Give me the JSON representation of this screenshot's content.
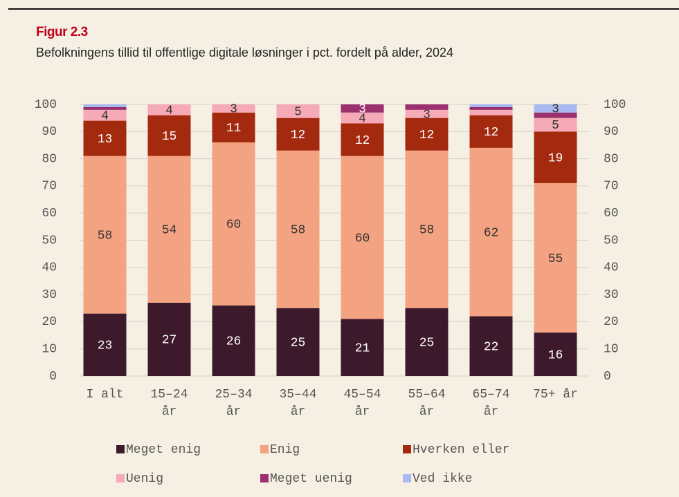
{
  "chart_data": {
    "type": "stacked_bar",
    "title": "Figur 2.3",
    "subtitle": "Befolkningens tillid til offentlige digitale løsninger i pct. fordelt på alder, 2024",
    "categories": [
      "I alt",
      "15–24 år",
      "25–34 år",
      "35–44 år",
      "45–54 år",
      "55–64 år",
      "65–74 år",
      "75+ år"
    ],
    "series": [
      {
        "name": "Meget enig",
        "color": "#3d1a2b",
        "values": [
          23,
          27,
          26,
          25,
          21,
          25,
          22,
          16
        ],
        "value_labels": [
          "23",
          "27",
          "26",
          "25",
          "21",
          "25",
          "22",
          "16"
        ]
      },
      {
        "name": "Enig",
        "color": "#f4a382",
        "values": [
          58,
          54,
          60,
          58,
          60,
          58,
          62,
          55
        ],
        "value_labels": [
          "58",
          "54",
          "60",
          "58",
          "60",
          "58",
          "62",
          "55"
        ]
      },
      {
        "name": "Hverken eller",
        "color": "#a3290f",
        "values": [
          13,
          15,
          11,
          12,
          12,
          12,
          12,
          19
        ],
        "value_labels": [
          "13",
          "15",
          "11",
          "12",
          "12",
          "12",
          "12",
          "19"
        ]
      },
      {
        "name": "Uenig",
        "color": "#f6a9b6",
        "values": [
          4,
          4,
          3,
          5,
          4,
          3,
          2,
          5
        ],
        "value_labels": [
          "4",
          "4",
          "3",
          "5",
          "4",
          "3",
          null,
          "5"
        ]
      },
      {
        "name": "Meget uenig",
        "color": "#9b306e",
        "values": [
          1,
          0,
          0,
          0,
          3,
          2,
          1,
          2
        ],
        "value_labels": [
          null,
          null,
          null,
          null,
          "3",
          null,
          null,
          null
        ]
      },
      {
        "name": "Ved ikke",
        "color": "#a9b9f2",
        "values": [
          1,
          0,
          0,
          0,
          0,
          0,
          1,
          3
        ],
        "value_labels": [
          null,
          null,
          null,
          null,
          null,
          null,
          null,
          "3"
        ]
      }
    ],
    "ylim": [
      0,
      100
    ],
    "yticks": [
      0,
      10,
      20,
      30,
      40,
      50,
      60,
      70,
      80,
      90,
      100
    ],
    "y2lim": [
      0,
      100
    ],
    "y2ticks": [
      0,
      10,
      20,
      30,
      40,
      50,
      60,
      70,
      80,
      90,
      100
    ],
    "grid": true,
    "legend": "bottom"
  }
}
